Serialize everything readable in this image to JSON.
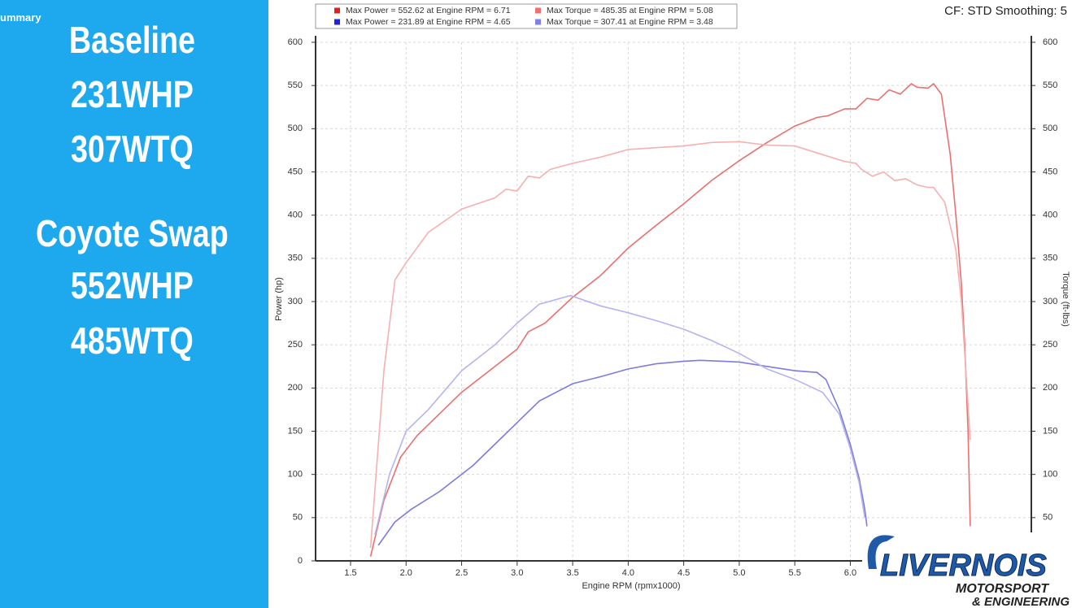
{
  "sidebar": {
    "tab": "ummary",
    "lines": [
      "Baseline",
      "231WHP",
      "307WTQ",
      "Coyote Swap",
      "552WHP",
      "485WTQ"
    ]
  },
  "header": {
    "settings": "CF: STD Smoothing: 5"
  },
  "logo": {
    "name": "LIVERNOIS",
    "line2": "MOTORSPORT",
    "line3": "& ENGINEERING"
  },
  "chart_data": {
    "type": "line",
    "xlabel": "Engine RPM (rpmx1000)",
    "ylabel": "Power (hp)",
    "y2label": "Torque (ft-lbs)",
    "xlim": [
      1.185,
      7.63
    ],
    "ylim": [
      0,
      600
    ],
    "y2lim": [
      0,
      600
    ],
    "grid": true,
    "xticks": [
      {
        "value": 1.5,
        "label": "1.5"
      },
      {
        "value": 2,
        "label": "2.0"
      },
      {
        "value": 2.5,
        "label": "2.5"
      },
      {
        "value": 3,
        "label": "3.0"
      },
      {
        "value": 3.5,
        "label": "3.5"
      },
      {
        "value": 4,
        "label": "4.0"
      },
      {
        "value": 4.5,
        "label": "4.5"
      },
      {
        "value": 5,
        "label": "5.0"
      },
      {
        "value": 5.5,
        "label": "5.5"
      },
      {
        "value": 6,
        "label": "6.0"
      }
    ],
    "yticks": [
      0,
      50,
      100,
      150,
      200,
      250,
      300,
      350,
      400,
      450,
      500,
      550,
      600
    ],
    "y2ticks": [
      50,
      100,
      150,
      200,
      250,
      300,
      350,
      400,
      450,
      500,
      550,
      600
    ],
    "series": [
      {
        "name": "Max Power = 552.62 at Engine RPM = 6.71",
        "color": "#e02020",
        "line_color": "#ea7070",
        "x": [
          1.68,
          1.8,
          1.95,
          2.1,
          2.5,
          2.9,
          3.0,
          3.1,
          3.25,
          3.5,
          3.75,
          4.0,
          4.25,
          4.5,
          4.75,
          5.0,
          5.25,
          5.5,
          5.7,
          5.8,
          5.95,
          6.05,
          6.15,
          6.25,
          6.35,
          6.45,
          6.55,
          6.6,
          6.7,
          6.75,
          6.82,
          6.9,
          6.95,
          7.0,
          7.03,
          7.06,
          7.08
        ],
        "values": [
          5,
          70,
          120,
          145,
          195,
          235,
          245,
          265,
          275,
          305,
          330,
          362,
          388,
          413,
          440,
          463,
          484,
          503,
          513,
          515,
          523,
          523,
          535,
          533,
          545,
          540,
          552,
          548,
          547,
          552,
          540,
          470,
          400,
          320,
          250,
          150,
          40
        ]
      },
      {
        "name": "Max Torque = 485.35 at Engine RPM = 5.08",
        "color": "#f07070",
        "line_color": "#f5b0b0",
        "axis": "y2",
        "x": [
          1.68,
          1.8,
          1.9,
          2.0,
          2.2,
          2.5,
          2.8,
          2.9,
          3.0,
          3.1,
          3.2,
          3.3,
          3.5,
          3.75,
          4.0,
          4.25,
          4.5,
          4.75,
          5.0,
          5.25,
          5.5,
          5.75,
          5.95,
          6.05,
          6.1,
          6.2,
          6.3,
          6.4,
          6.5,
          6.6,
          6.7,
          6.75,
          6.85,
          6.95,
          7.0,
          7.05,
          7.08
        ],
        "values": [
          15,
          220,
          325,
          345,
          380,
          407,
          420,
          430,
          428,
          445,
          443,
          453,
          460,
          467,
          476,
          478,
          480,
          484,
          485,
          481,
          480,
          470,
          462,
          460,
          453,
          445,
          450,
          440,
          442,
          435,
          432,
          432,
          415,
          360,
          300,
          200,
          140
        ]
      },
      {
        "name": "Max Power = 231.89 at Engine RPM = 4.65",
        "color": "#2020e0",
        "line_color": "#7c7ce0",
        "x": [
          1.75,
          1.9,
          2.05,
          2.3,
          2.6,
          2.8,
          3.0,
          3.2,
          3.5,
          3.75,
          4.0,
          4.25,
          4.5,
          4.65,
          4.85,
          5.0,
          5.25,
          5.5,
          5.7,
          5.78,
          5.9,
          6.0,
          6.08,
          6.13,
          6.15
        ],
        "values": [
          18,
          45,
          60,
          80,
          110,
          135,
          160,
          185,
          205,
          213,
          222,
          228,
          231,
          232,
          231,
          230,
          225,
          220,
          218,
          210,
          175,
          135,
          95,
          60,
          40
        ]
      },
      {
        "name": "Max Torque = 307.41 at Engine RPM = 3.48",
        "color": "#8080e8",
        "line_color": "#b4b4f0",
        "axis": "y2",
        "x": [
          1.72,
          1.85,
          2.0,
          2.2,
          2.5,
          2.8,
          3.0,
          3.2,
          3.48,
          3.75,
          4.0,
          4.25,
          4.5,
          4.75,
          5.0,
          5.25,
          5.5,
          5.75,
          5.9,
          6.0,
          6.08,
          6.13
        ],
        "values": [
          30,
          100,
          150,
          175,
          220,
          250,
          275,
          297,
          307,
          295,
          287,
          278,
          268,
          255,
          240,
          222,
          210,
          195,
          170,
          130,
          90,
          50
        ]
      }
    ]
  }
}
